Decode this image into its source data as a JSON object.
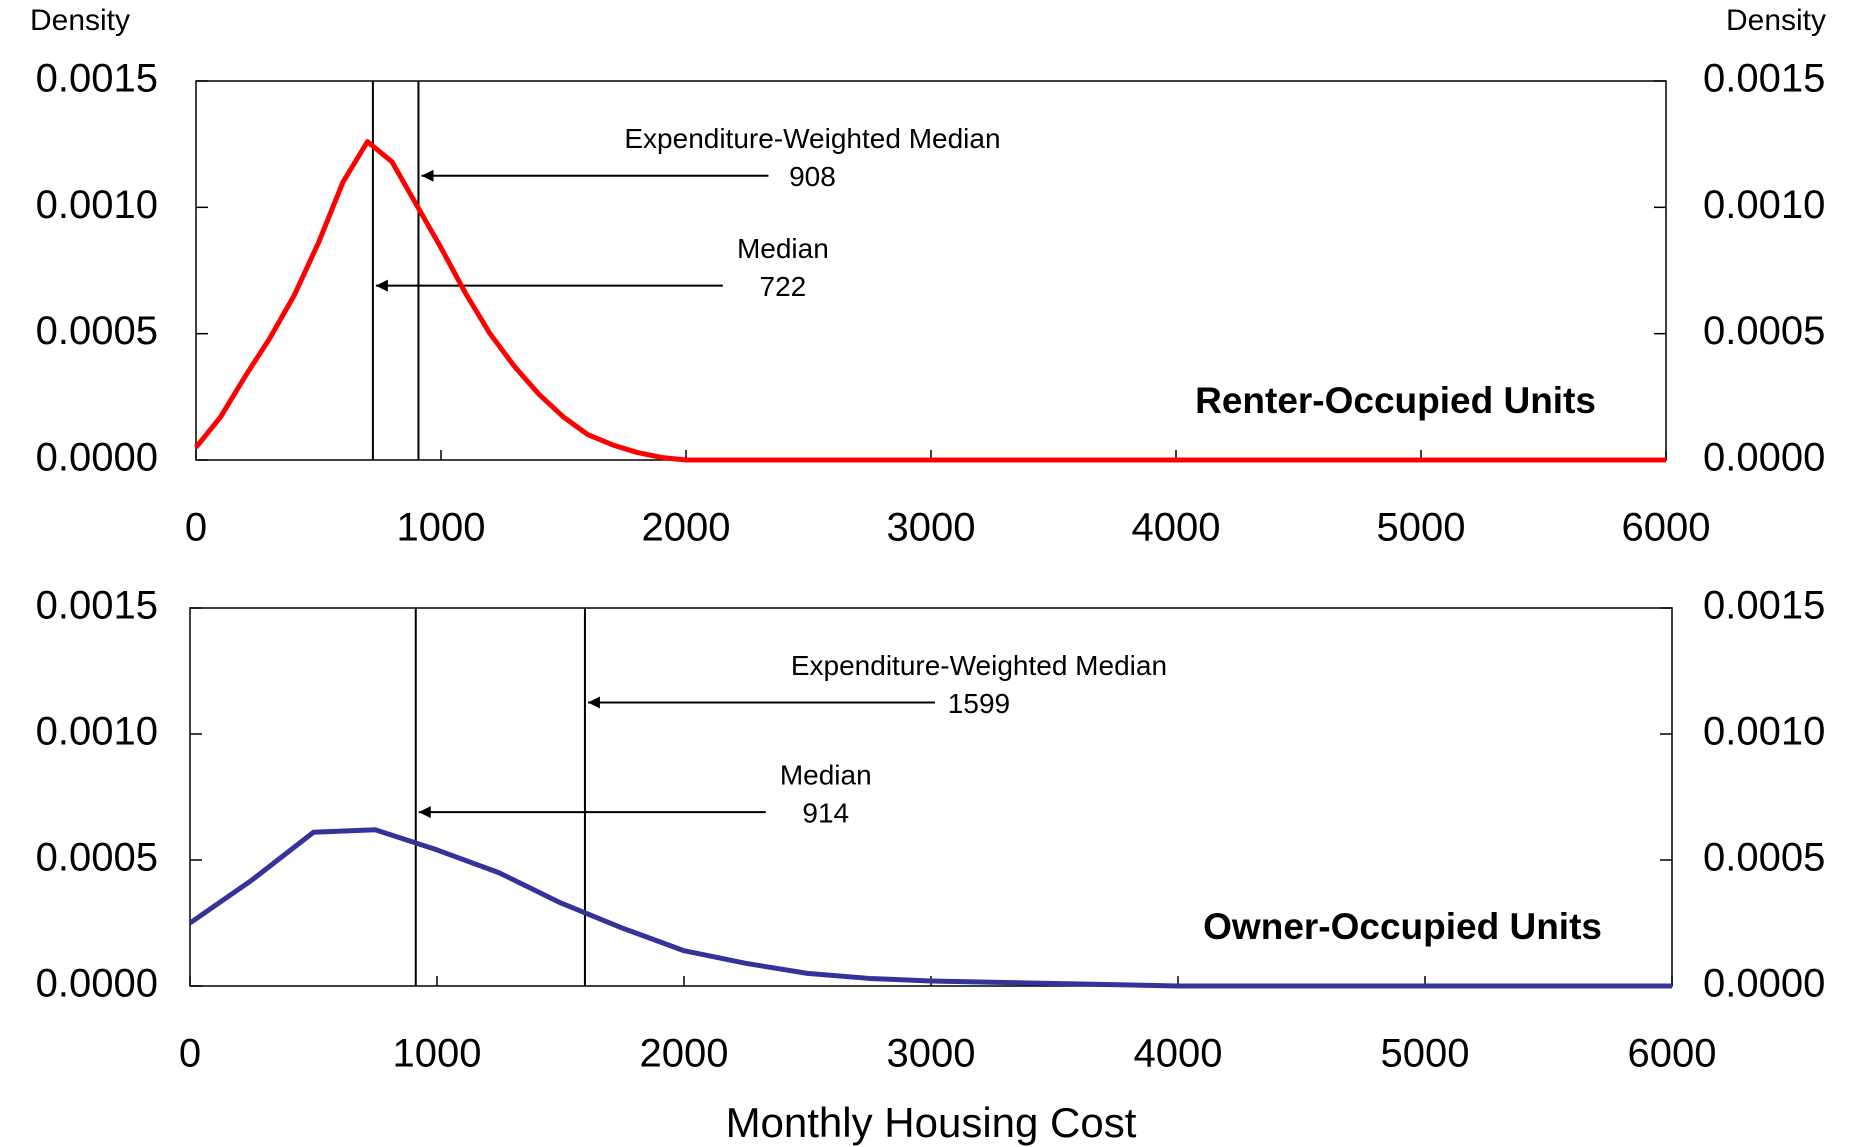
{
  "chart_data": [
    {
      "type": "line",
      "ylabel": "Density",
      "x": [
        0,
        100,
        200,
        300,
        400,
        500,
        600,
        700,
        800,
        900,
        1000,
        1100,
        1200,
        1300,
        1400,
        1500,
        1600,
        1700,
        1800,
        1900,
        2000,
        2500,
        3000,
        4000,
        5000,
        6000
      ],
      "series": [
        {
          "name": "Renter-Occupied Units",
          "color": "#ff0000",
          "values": [
            5e-05,
            0.00017,
            0.00033,
            0.00048,
            0.00065,
            0.00086,
            0.0011,
            0.00126,
            0.00118,
            0.00101,
            0.00084,
            0.00066,
            0.0005,
            0.00037,
            0.00026,
            0.00017,
            0.0001,
            6e-05,
            3e-05,
            1e-05,
            0,
            0,
            0,
            0,
            0,
            0
          ]
        }
      ],
      "xlim": [
        0,
        6000
      ],
      "xticks": [
        0,
        1000,
        2000,
        3000,
        4000,
        5000,
        6000
      ],
      "ylim": [
        0,
        0.0015
      ],
      "yticks": [
        {
          "value": 0,
          "label": "0.0000"
        },
        {
          "value": 0.0005,
          "label": "0.0005"
        },
        {
          "value": 0.001,
          "label": "0.0010"
        },
        {
          "value": 0.0015,
          "label": "0.0015"
        }
      ],
      "annotations": [
        {
          "text": "Expenditure-Weighted Median",
          "value": 908
        },
        {
          "text": "Median",
          "value": 722
        }
      ]
    },
    {
      "type": "line",
      "xlabel": "Monthly Housing Cost",
      "x": [
        0,
        250,
        500,
        750,
        1000,
        1250,
        1500,
        1750,
        2000,
        2250,
        2500,
        2750,
        3000,
        3500,
        4000,
        5000,
        6000
      ],
      "series": [
        {
          "name": "Owner-Occupied Units",
          "color": "#333399",
          "values": [
            0.00025,
            0.00042,
            0.00061,
            0.00062,
            0.00054,
            0.00045,
            0.00033,
            0.00023,
            0.00014,
            9e-05,
            5e-05,
            3e-05,
            2e-05,
            1e-05,
            0,
            0,
            0
          ]
        }
      ],
      "xlim": [
        0,
        6000
      ],
      "xticks": [
        0,
        1000,
        2000,
        3000,
        4000,
        5000,
        6000
      ],
      "ylim": [
        0,
        0.0015
      ],
      "yticks": [
        {
          "value": 0,
          "label": "0.0000"
        },
        {
          "value": 0.0005,
          "label": "0.0005"
        },
        {
          "value": 0.001,
          "label": "0.0010"
        },
        {
          "value": 0.0015,
          "label": "0.0015"
        }
      ],
      "annotations": [
        {
          "text": "Expenditure-Weighted Median",
          "value": 1599
        },
        {
          "text": "Median",
          "value": 914
        }
      ]
    }
  ]
}
